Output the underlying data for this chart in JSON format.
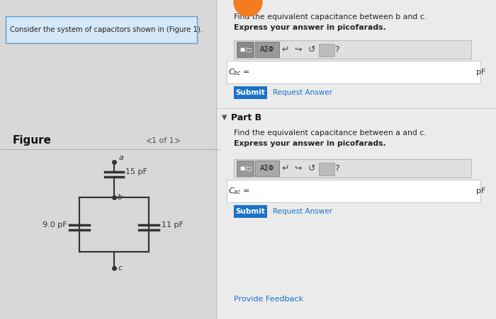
{
  "bg_color": "#f0f0f0",
  "left_panel_bg": "#d8d8d8",
  "right_panel_bg": "#ebebeb",
  "blue_box_bg": "#d6e8f5",
  "blue_box_border": "#5b9bd5",
  "consider_text": "Consider the system of capacitors shown in (Figure 1).",
  "figure_label": "Figure",
  "nav_text": "1 of 1",
  "part_a_title": "Find the equivalent capacitance between b and c.",
  "part_a_subtitle": "Express your answer in picofarads.",
  "part_b_label": "Part B",
  "part_b_title": "Find the equivalent capacitance between a and c.",
  "part_b_subtitle": "Express your answer in picofarads.",
  "pf_label": "pF",
  "submit_color": "#1a73c7",
  "submit_text": "Submit",
  "request_answer_text": "Request Answer",
  "provide_feedback_text": "Provide Feedback",
  "cap_15": "15 pF",
  "cap_9": "9.0 pF",
  "cap_11": "11 pF",
  "node_a": "a",
  "node_b": "b",
  "node_c": "c",
  "input_box_bg": "#ffffff",
  "wire_color": "#333333",
  "orange_color": "#f47c20"
}
